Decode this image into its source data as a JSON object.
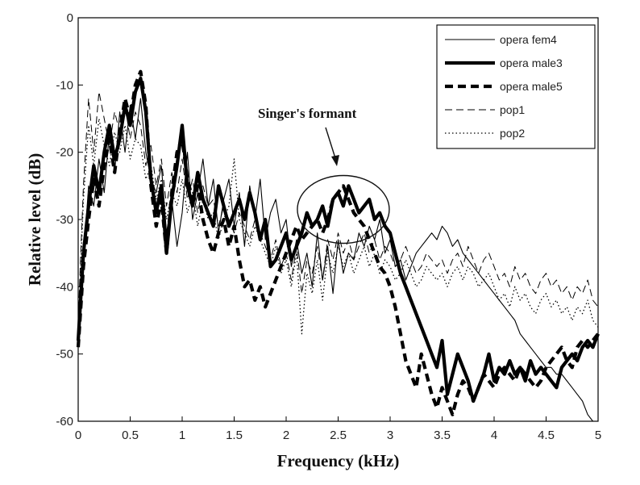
{
  "chart_data": {
    "type": "line",
    "title": "",
    "xlabel": "Frequency (kHz)",
    "ylabel": "Relative level (dB)",
    "xlim": [
      0,
      5
    ],
    "ylim": [
      -60,
      0
    ],
    "xticks": [
      "0",
      "0.5",
      "1",
      "1.5",
      "2",
      "2.5",
      "3",
      "3.5",
      "4",
      "4.5",
      "5"
    ],
    "yticks": [
      "0",
      "-10",
      "-20",
      "-30",
      "-40",
      "-50",
      "-60"
    ],
    "legend_position": "top-right",
    "grid": false,
    "annotation": {
      "text": "Singer's formant",
      "x": 2.55,
      "y": -28.5
    },
    "series": [
      {
        "name": "opera fem4",
        "style": "thin-solid",
        "x": [
          0,
          0.05,
          0.1,
          0.15,
          0.2,
          0.25,
          0.3,
          0.35,
          0.4,
          0.45,
          0.5,
          0.55,
          0.6,
          0.65,
          0.7,
          0.75,
          0.8,
          0.85,
          0.9,
          0.95,
          1.0,
          1.05,
          1.1,
          1.15,
          1.2,
          1.25,
          1.3,
          1.35,
          1.4,
          1.45,
          1.5,
          1.55,
          1.6,
          1.65,
          1.7,
          1.75,
          1.8,
          1.85,
          1.9,
          1.95,
          2.0,
          2.05,
          2.1,
          2.15,
          2.2,
          2.25,
          2.3,
          2.35,
          2.4,
          2.45,
          2.5,
          2.55,
          2.6,
          2.65,
          2.7,
          2.75,
          2.8,
          2.85,
          2.9,
          2.95,
          3.0,
          3.05,
          3.1,
          3.15,
          3.2,
          3.25,
          3.3,
          3.35,
          3.4,
          3.45,
          3.5,
          3.55,
          3.6,
          3.65,
          3.7,
          3.75,
          3.8,
          3.85,
          3.9,
          3.95,
          4.0,
          4.05,
          4.1,
          4.15,
          4.2,
          4.25,
          4.3,
          4.35,
          4.4,
          4.45,
          4.5,
          4.55,
          4.6,
          4.65,
          4.7,
          4.75,
          4.8,
          4.85,
          4.9,
          4.95,
          5.0
        ],
        "y": [
          -48,
          -36,
          -25,
          -28,
          -21,
          -26,
          -17,
          -23,
          -14,
          -20,
          -13,
          -18,
          -12,
          -20,
          -24,
          -26,
          -22,
          -32,
          -27,
          -34,
          -29,
          -20,
          -30,
          -26,
          -21,
          -28,
          -24,
          -32,
          -27,
          -24,
          -31,
          -26,
          -34,
          -25,
          -30,
          -24,
          -33,
          -29,
          -27,
          -32,
          -30,
          -37,
          -33,
          -38,
          -35,
          -40,
          -32,
          -39,
          -34,
          -41,
          -33,
          -38,
          -35,
          -36,
          -32,
          -34,
          -31,
          -33,
          -30,
          -35,
          -33,
          -37,
          -36,
          -39,
          -37,
          -35,
          -34,
          -33,
          -32,
          -33,
          -31,
          -32,
          -34,
          -33,
          -35,
          -36,
          -37,
          -38,
          -39,
          -40,
          -41,
          -42,
          -43,
          -44,
          -45,
          -47,
          -48,
          -49,
          -50,
          -51,
          -52,
          -52,
          -53,
          -53,
          -54,
          -55,
          -56,
          -57,
          -59,
          -60,
          -60
        ]
      },
      {
        "name": "opera male3",
        "style": "thick-solid",
        "x": [
          0,
          0.05,
          0.1,
          0.15,
          0.2,
          0.25,
          0.3,
          0.35,
          0.4,
          0.45,
          0.5,
          0.55,
          0.6,
          0.65,
          0.7,
          0.75,
          0.8,
          0.85,
          0.9,
          0.95,
          1.0,
          1.05,
          1.1,
          1.15,
          1.2,
          1.25,
          1.3,
          1.35,
          1.4,
          1.45,
          1.5,
          1.55,
          1.6,
          1.65,
          1.7,
          1.75,
          1.8,
          1.85,
          1.9,
          1.95,
          2.0,
          2.05,
          2.1,
          2.15,
          2.2,
          2.25,
          2.3,
          2.35,
          2.4,
          2.45,
          2.5,
          2.55,
          2.6,
          2.65,
          2.7,
          2.75,
          2.8,
          2.85,
          2.9,
          2.95,
          3.0,
          3.05,
          3.1,
          3.15,
          3.2,
          3.25,
          3.3,
          3.35,
          3.4,
          3.45,
          3.5,
          3.55,
          3.6,
          3.65,
          3.7,
          3.75,
          3.8,
          3.85,
          3.9,
          3.95,
          4.0,
          4.05,
          4.1,
          4.15,
          4.2,
          4.25,
          4.3,
          4.35,
          4.4,
          4.45,
          4.5,
          4.55,
          4.6,
          4.65,
          4.7,
          4.75,
          4.8,
          4.85,
          4.9,
          4.95,
          5.0
        ],
        "y": [
          -48,
          -35,
          -28,
          -22,
          -26,
          -20,
          -16,
          -21,
          -18,
          -13,
          -16,
          -11,
          -9,
          -14,
          -24,
          -29,
          -25,
          -35,
          -27,
          -22,
          -16,
          -25,
          -28,
          -23,
          -27,
          -29,
          -31,
          -25,
          -28,
          -31,
          -29,
          -27,
          -30,
          -26,
          -29,
          -33,
          -30,
          -37,
          -36,
          -34,
          -32,
          -36,
          -34,
          -32,
          -29,
          -31,
          -30,
          -28,
          -31,
          -27,
          -26,
          -28,
          -25,
          -27,
          -29,
          -28,
          -27,
          -30,
          -29,
          -31,
          -32,
          -35,
          -38,
          -40,
          -42,
          -44,
          -46,
          -48,
          -50,
          -52,
          -48,
          -56,
          -53,
          -50,
          -52,
          -54,
          -57,
          -55,
          -53,
          -50,
          -54,
          -52,
          -53,
          -51,
          -53,
          -52,
          -54,
          -51,
          -53,
          -52,
          -53,
          -54,
          -55,
          -52,
          -51,
          -50,
          -51,
          -49,
          -48,
          -49,
          -47
        ]
      },
      {
        "name": "opera male5",
        "style": "thick-dashed",
        "x": [
          0,
          0.05,
          0.1,
          0.15,
          0.2,
          0.25,
          0.3,
          0.35,
          0.4,
          0.45,
          0.5,
          0.55,
          0.6,
          0.65,
          0.7,
          0.75,
          0.8,
          0.85,
          0.9,
          0.95,
          1.0,
          1.05,
          1.1,
          1.15,
          1.2,
          1.25,
          1.3,
          1.35,
          1.4,
          1.45,
          1.5,
          1.55,
          1.6,
          1.65,
          1.7,
          1.75,
          1.8,
          1.85,
          1.9,
          1.95,
          2.0,
          2.05,
          2.1,
          2.15,
          2.2,
          2.25,
          2.3,
          2.35,
          2.4,
          2.45,
          2.5,
          2.55,
          2.6,
          2.65,
          2.7,
          2.75,
          2.8,
          2.85,
          2.9,
          2.95,
          3.0,
          3.05,
          3.1,
          3.15,
          3.2,
          3.25,
          3.3,
          3.35,
          3.4,
          3.45,
          3.5,
          3.55,
          3.6,
          3.65,
          3.7,
          3.75,
          3.8,
          3.85,
          3.9,
          3.95,
          4.0,
          4.05,
          4.1,
          4.15,
          4.2,
          4.25,
          4.3,
          4.35,
          4.4,
          4.45,
          4.5,
          4.55,
          4.6,
          4.65,
          4.7,
          4.75,
          4.8,
          4.85,
          4.9,
          4.95,
          5.0
        ],
        "y": [
          -49,
          -37,
          -30,
          -24,
          -28,
          -22,
          -18,
          -23,
          -17,
          -12,
          -15,
          -10,
          -8,
          -13,
          -25,
          -31,
          -27,
          -35,
          -26,
          -20,
          -18,
          -24,
          -27,
          -25,
          -30,
          -33,
          -35,
          -32,
          -30,
          -34,
          -31,
          -36,
          -40,
          -39,
          -42,
          -40,
          -43,
          -41,
          -39,
          -37,
          -35,
          -33,
          -31,
          -33,
          -32,
          -31,
          -30,
          -32,
          -30,
          -27,
          -26,
          -25,
          -27,
          -29,
          -30,
          -31,
          -33,
          -35,
          -37,
          -38,
          -40,
          -43,
          -47,
          -51,
          -53,
          -55,
          -50,
          -53,
          -56,
          -58,
          -55,
          -57,
          -59,
          -56,
          -54,
          -55,
          -57,
          -55,
          -53,
          -54,
          -55,
          -53,
          -52,
          -53,
          -54,
          -52,
          -53,
          -54,
          -55,
          -54,
          -52,
          -51,
          -50,
          -49,
          -51,
          -52,
          -49,
          -48,
          -49,
          -48,
          -47
        ]
      },
      {
        "name": "pop1",
        "style": "thin-dashed",
        "x": [
          0,
          0.05,
          0.1,
          0.15,
          0.2,
          0.25,
          0.3,
          0.35,
          0.4,
          0.45,
          0.5,
          0.55,
          0.6,
          0.65,
          0.7,
          0.75,
          0.8,
          0.85,
          0.9,
          0.95,
          1.0,
          1.05,
          1.1,
          1.15,
          1.2,
          1.25,
          1.3,
          1.35,
          1.4,
          1.45,
          1.5,
          1.55,
          1.6,
          1.65,
          1.7,
          1.75,
          1.8,
          1.85,
          1.9,
          1.95,
          2.0,
          2.05,
          2.1,
          2.15,
          2.2,
          2.25,
          2.3,
          2.35,
          2.4,
          2.45,
          2.5,
          2.55,
          2.6,
          2.65,
          2.7,
          2.75,
          2.8,
          2.85,
          2.9,
          2.95,
          3.0,
          3.05,
          3.1,
          3.15,
          3.2,
          3.25,
          3.3,
          3.35,
          3.4,
          3.45,
          3.5,
          3.55,
          3.6,
          3.65,
          3.7,
          3.75,
          3.8,
          3.85,
          3.9,
          3.95,
          4.0,
          4.05,
          4.1,
          4.15,
          4.2,
          4.25,
          4.3,
          4.35,
          4.4,
          4.45,
          4.5,
          4.55,
          4.6,
          4.65,
          4.7,
          4.75,
          4.8,
          4.85,
          4.9,
          4.95,
          5.0
        ],
        "y": [
          -45,
          -25,
          -12,
          -20,
          -11,
          -15,
          -19,
          -14,
          -17,
          -13,
          -18,
          -14,
          -16,
          -22,
          -19,
          -25,
          -21,
          -28,
          -23,
          -26,
          -21,
          -27,
          -24,
          -29,
          -25,
          -28,
          -27,
          -31,
          -28,
          -30,
          -32,
          -29,
          -31,
          -33,
          -30,
          -32,
          -34,
          -36,
          -33,
          -37,
          -35,
          -39,
          -34,
          -41,
          -36,
          -38,
          -34,
          -39,
          -33,
          -36,
          -32,
          -35,
          -33,
          -36,
          -34,
          -32,
          -35,
          -33,
          -36,
          -34,
          -35,
          -37,
          -36,
          -34,
          -36,
          -38,
          -37,
          -35,
          -36,
          -37,
          -36,
          -38,
          -36,
          -35,
          -37,
          -34,
          -36,
          -38,
          -36,
          -35,
          -37,
          -39,
          -38,
          -40,
          -37,
          -39,
          -38,
          -40,
          -41,
          -39,
          -38,
          -40,
          -39,
          -41,
          -40,
          -42,
          -40,
          -41,
          -39,
          -42,
          -43
        ]
      },
      {
        "name": "pop2",
        "style": "dotted",
        "x": [
          0,
          0.05,
          0.1,
          0.15,
          0.2,
          0.25,
          0.3,
          0.35,
          0.4,
          0.45,
          0.5,
          0.55,
          0.6,
          0.65,
          0.7,
          0.75,
          0.8,
          0.85,
          0.9,
          0.95,
          1.0,
          1.05,
          1.1,
          1.15,
          1.2,
          1.25,
          1.3,
          1.35,
          1.4,
          1.45,
          1.5,
          1.55,
          1.6,
          1.65,
          1.7,
          1.75,
          1.8,
          1.85,
          1.9,
          1.95,
          2.0,
          2.05,
          2.1,
          2.15,
          2.2,
          2.25,
          2.3,
          2.35,
          2.4,
          2.45,
          2.5,
          2.55,
          2.6,
          2.65,
          2.7,
          2.75,
          2.8,
          2.85,
          2.9,
          2.95,
          3.0,
          3.05,
          3.1,
          3.15,
          3.2,
          3.25,
          3.3,
          3.35,
          3.4,
          3.45,
          3.5,
          3.55,
          3.6,
          3.65,
          3.7,
          3.75,
          3.8,
          3.85,
          3.9,
          3.95,
          4.0,
          4.05,
          4.1,
          4.15,
          4.2,
          4.25,
          4.3,
          4.35,
          4.4,
          4.45,
          4.5,
          4.55,
          4.6,
          4.65,
          4.7,
          4.75,
          4.8,
          4.85,
          4.9,
          4.95,
          5.0
        ],
        "y": [
          -46,
          -27,
          -16,
          -22,
          -15,
          -19,
          -22,
          -17,
          -20,
          -16,
          -21,
          -18,
          -19,
          -24,
          -22,
          -27,
          -24,
          -30,
          -26,
          -28,
          -24,
          -29,
          -26,
          -31,
          -27,
          -30,
          -29,
          -33,
          -30,
          -28,
          -21,
          -30,
          -32,
          -34,
          -31,
          -33,
          -35,
          -37,
          -34,
          -38,
          -36,
          -40,
          -35,
          -47,
          -38,
          -41,
          -36,
          -42,
          -35,
          -38,
          -34,
          -37,
          -35,
          -38,
          -36,
          -34,
          -37,
          -35,
          -38,
          -36,
          -37,
          -39,
          -38,
          -36,
          -38,
          -40,
          -39,
          -37,
          -38,
          -39,
          -38,
          -40,
          -38,
          -37,
          -39,
          -37,
          -38,
          -40,
          -39,
          -38,
          -40,
          -42,
          -41,
          -43,
          -40,
          -42,
          -41,
          -43,
          -44,
          -42,
          -41,
          -43,
          -42,
          -44,
          -43,
          -45,
          -43,
          -44,
          -42,
          -45,
          -46
        ]
      }
    ]
  }
}
